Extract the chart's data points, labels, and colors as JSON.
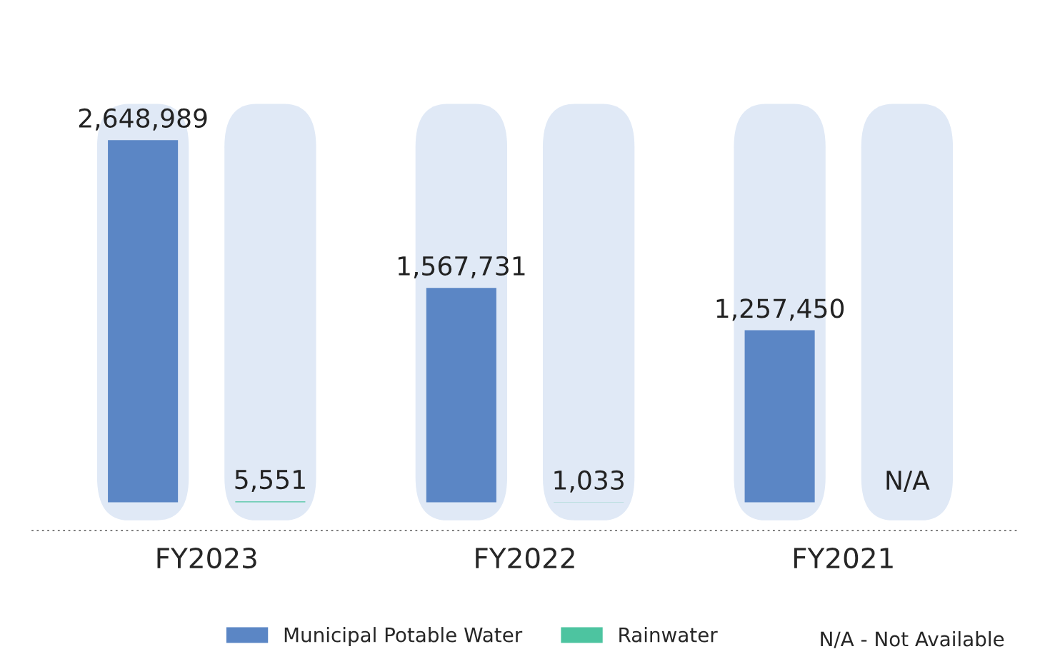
{
  "chart_data": {
    "type": "bar",
    "categories": [
      "FY2023",
      "FY2022",
      "FY2021"
    ],
    "series": [
      {
        "name": "Municipal Potable Water",
        "color": "#5b86c5",
        "values": [
          2648989,
          1567731,
          1257450
        ],
        "value_labels": [
          "2,648,989",
          "1,567,731",
          "1,257,450"
        ]
      },
      {
        "name": "Rainwater",
        "color": "#4dc4a0",
        "values": [
          5551,
          1033,
          null
        ],
        "value_labels": [
          "5,551",
          "1,033",
          "N/A"
        ]
      }
    ],
    "legend": "bottom",
    "grid": false,
    "annotations": [
      "N/A - Not Available"
    ]
  }
}
